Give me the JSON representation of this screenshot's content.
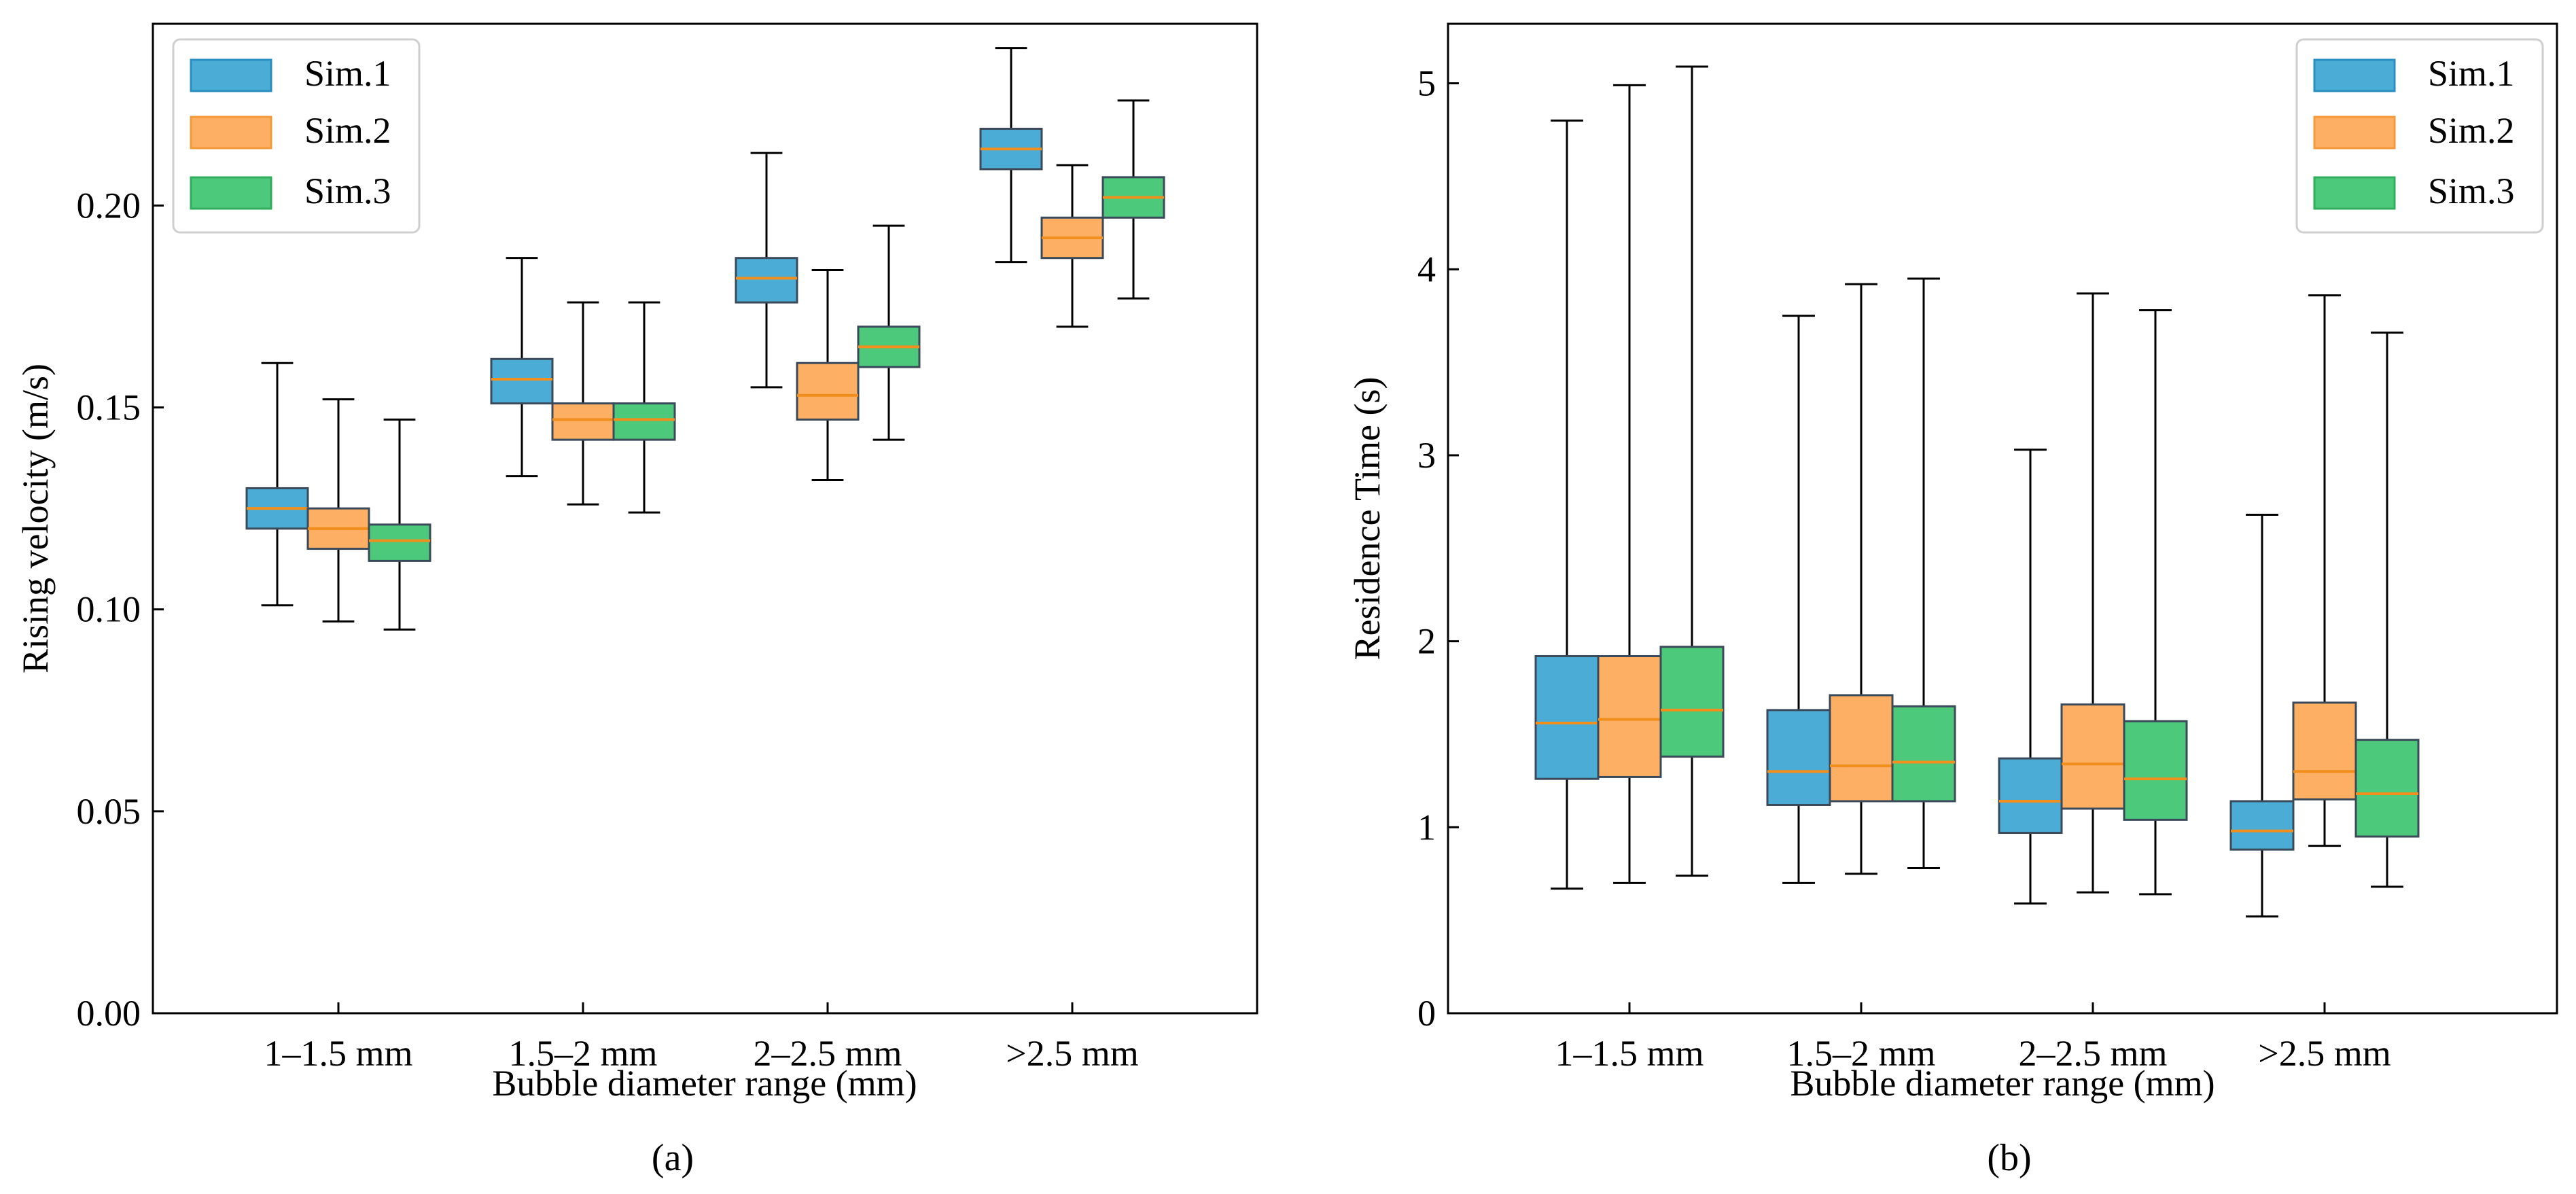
{
  "chart_data": [
    {
      "type": "box",
      "panel_label": "(a)",
      "xlabel": "Bubble diameter range (mm)",
      "ylabel": "Rising velocity (m/s)",
      "categories": [
        "1–1.5 mm",
        "1.5–2 mm",
        "2–2.5 mm",
        ">2.5 mm"
      ],
      "ylim": [
        0,
        0.245
      ],
      "yticks": [
        0.0,
        0.05,
        0.1,
        0.15,
        0.2
      ],
      "ytick_labels": [
        "0.00",
        "0.05",
        "0.10",
        "0.15",
        "0.20"
      ],
      "legend_position": "top-left",
      "series": [
        {
          "name": "Sim.1",
          "boxes": [
            {
              "whislo": 0.101,
              "q1": 0.12,
              "med": 0.125,
              "q3": 0.13,
              "whishi": 0.161
            },
            {
              "whislo": 0.133,
              "q1": 0.151,
              "med": 0.157,
              "q3": 0.162,
              "whishi": 0.187
            },
            {
              "whislo": 0.155,
              "q1": 0.176,
              "med": 0.182,
              "q3": 0.187,
              "whishi": 0.213
            },
            {
              "whislo": 0.186,
              "q1": 0.209,
              "med": 0.214,
              "q3": 0.219,
              "whishi": 0.239
            }
          ]
        },
        {
          "name": "Sim.2",
          "boxes": [
            {
              "whislo": 0.097,
              "q1": 0.115,
              "med": 0.12,
              "q3": 0.125,
              "whishi": 0.152
            },
            {
              "whislo": 0.126,
              "q1": 0.142,
              "med": 0.147,
              "q3": 0.151,
              "whishi": 0.176
            },
            {
              "whislo": 0.132,
              "q1": 0.147,
              "med": 0.153,
              "q3": 0.161,
              "whishi": 0.184
            },
            {
              "whislo": 0.17,
              "q1": 0.187,
              "med": 0.192,
              "q3": 0.197,
              "whishi": 0.21
            }
          ]
        },
        {
          "name": "Sim.3",
          "boxes": [
            {
              "whislo": 0.095,
              "q1": 0.112,
              "med": 0.117,
              "q3": 0.121,
              "whishi": 0.147
            },
            {
              "whislo": 0.124,
              "q1": 0.142,
              "med": 0.147,
              "q3": 0.151,
              "whishi": 0.176
            },
            {
              "whislo": 0.142,
              "q1": 0.16,
              "med": 0.165,
              "q3": 0.17,
              "whishi": 0.195
            },
            {
              "whislo": 0.177,
              "q1": 0.197,
              "med": 0.202,
              "q3": 0.207,
              "whishi": 0.226
            }
          ]
        }
      ]
    },
    {
      "type": "box",
      "panel_label": "(b)",
      "xlabel": "Bubble diameter range (mm)",
      "ylabel": "Residence Time (s)",
      "categories": [
        "1–1.5 mm",
        "1.5–2 mm",
        "2–2.5 mm",
        ">2.5 mm"
      ],
      "ylim": [
        0,
        5.32
      ],
      "yticks": [
        0,
        1,
        2,
        3,
        4,
        5
      ],
      "ytick_labels": [
        "0",
        "1",
        "2",
        "3",
        "4",
        "5"
      ],
      "legend_position": "top-right",
      "series": [
        {
          "name": "Sim.1",
          "boxes": [
            {
              "whislo": 0.67,
              "q1": 1.26,
              "med": 1.56,
              "q3": 1.92,
              "whishi": 4.8
            },
            {
              "whislo": 0.7,
              "q1": 1.12,
              "med": 1.3,
              "q3": 1.63,
              "whishi": 3.75
            },
            {
              "whislo": 0.59,
              "q1": 0.97,
              "med": 1.14,
              "q3": 1.37,
              "whishi": 3.03
            },
            {
              "whislo": 0.52,
              "q1": 0.88,
              "med": 0.98,
              "q3": 1.14,
              "whishi": 2.68
            }
          ]
        },
        {
          "name": "Sim.2",
          "boxes": [
            {
              "whislo": 0.7,
              "q1": 1.27,
              "med": 1.58,
              "q3": 1.92,
              "whishi": 4.99
            },
            {
              "whislo": 0.75,
              "q1": 1.14,
              "med": 1.33,
              "q3": 1.71,
              "whishi": 3.92
            },
            {
              "whislo": 0.65,
              "q1": 1.1,
              "med": 1.34,
              "q3": 1.66,
              "whishi": 3.87
            },
            {
              "whislo": 0.9,
              "q1": 1.15,
              "med": 1.3,
              "q3": 1.67,
              "whishi": 3.86
            }
          ]
        },
        {
          "name": "Sim.3",
          "boxes": [
            {
              "whislo": 0.74,
              "q1": 1.38,
              "med": 1.63,
              "q3": 1.97,
              "whishi": 5.09
            },
            {
              "whislo": 0.78,
              "q1": 1.14,
              "med": 1.35,
              "q3": 1.65,
              "whishi": 3.95
            },
            {
              "whislo": 0.64,
              "q1": 1.04,
              "med": 1.26,
              "q3": 1.57,
              "whishi": 3.78
            },
            {
              "whislo": 0.68,
              "q1": 0.95,
              "med": 1.18,
              "q3": 1.47,
              "whishi": 3.66
            }
          ]
        }
      ]
    }
  ],
  "colors": {
    "Sim.1": "#4bacd6",
    "Sim.2": "#fdb063",
    "Sim.3": "#4cc97a",
    "median": "#f28e1c",
    "box_edge": "#3a4a5a",
    "axis": "#000000"
  }
}
